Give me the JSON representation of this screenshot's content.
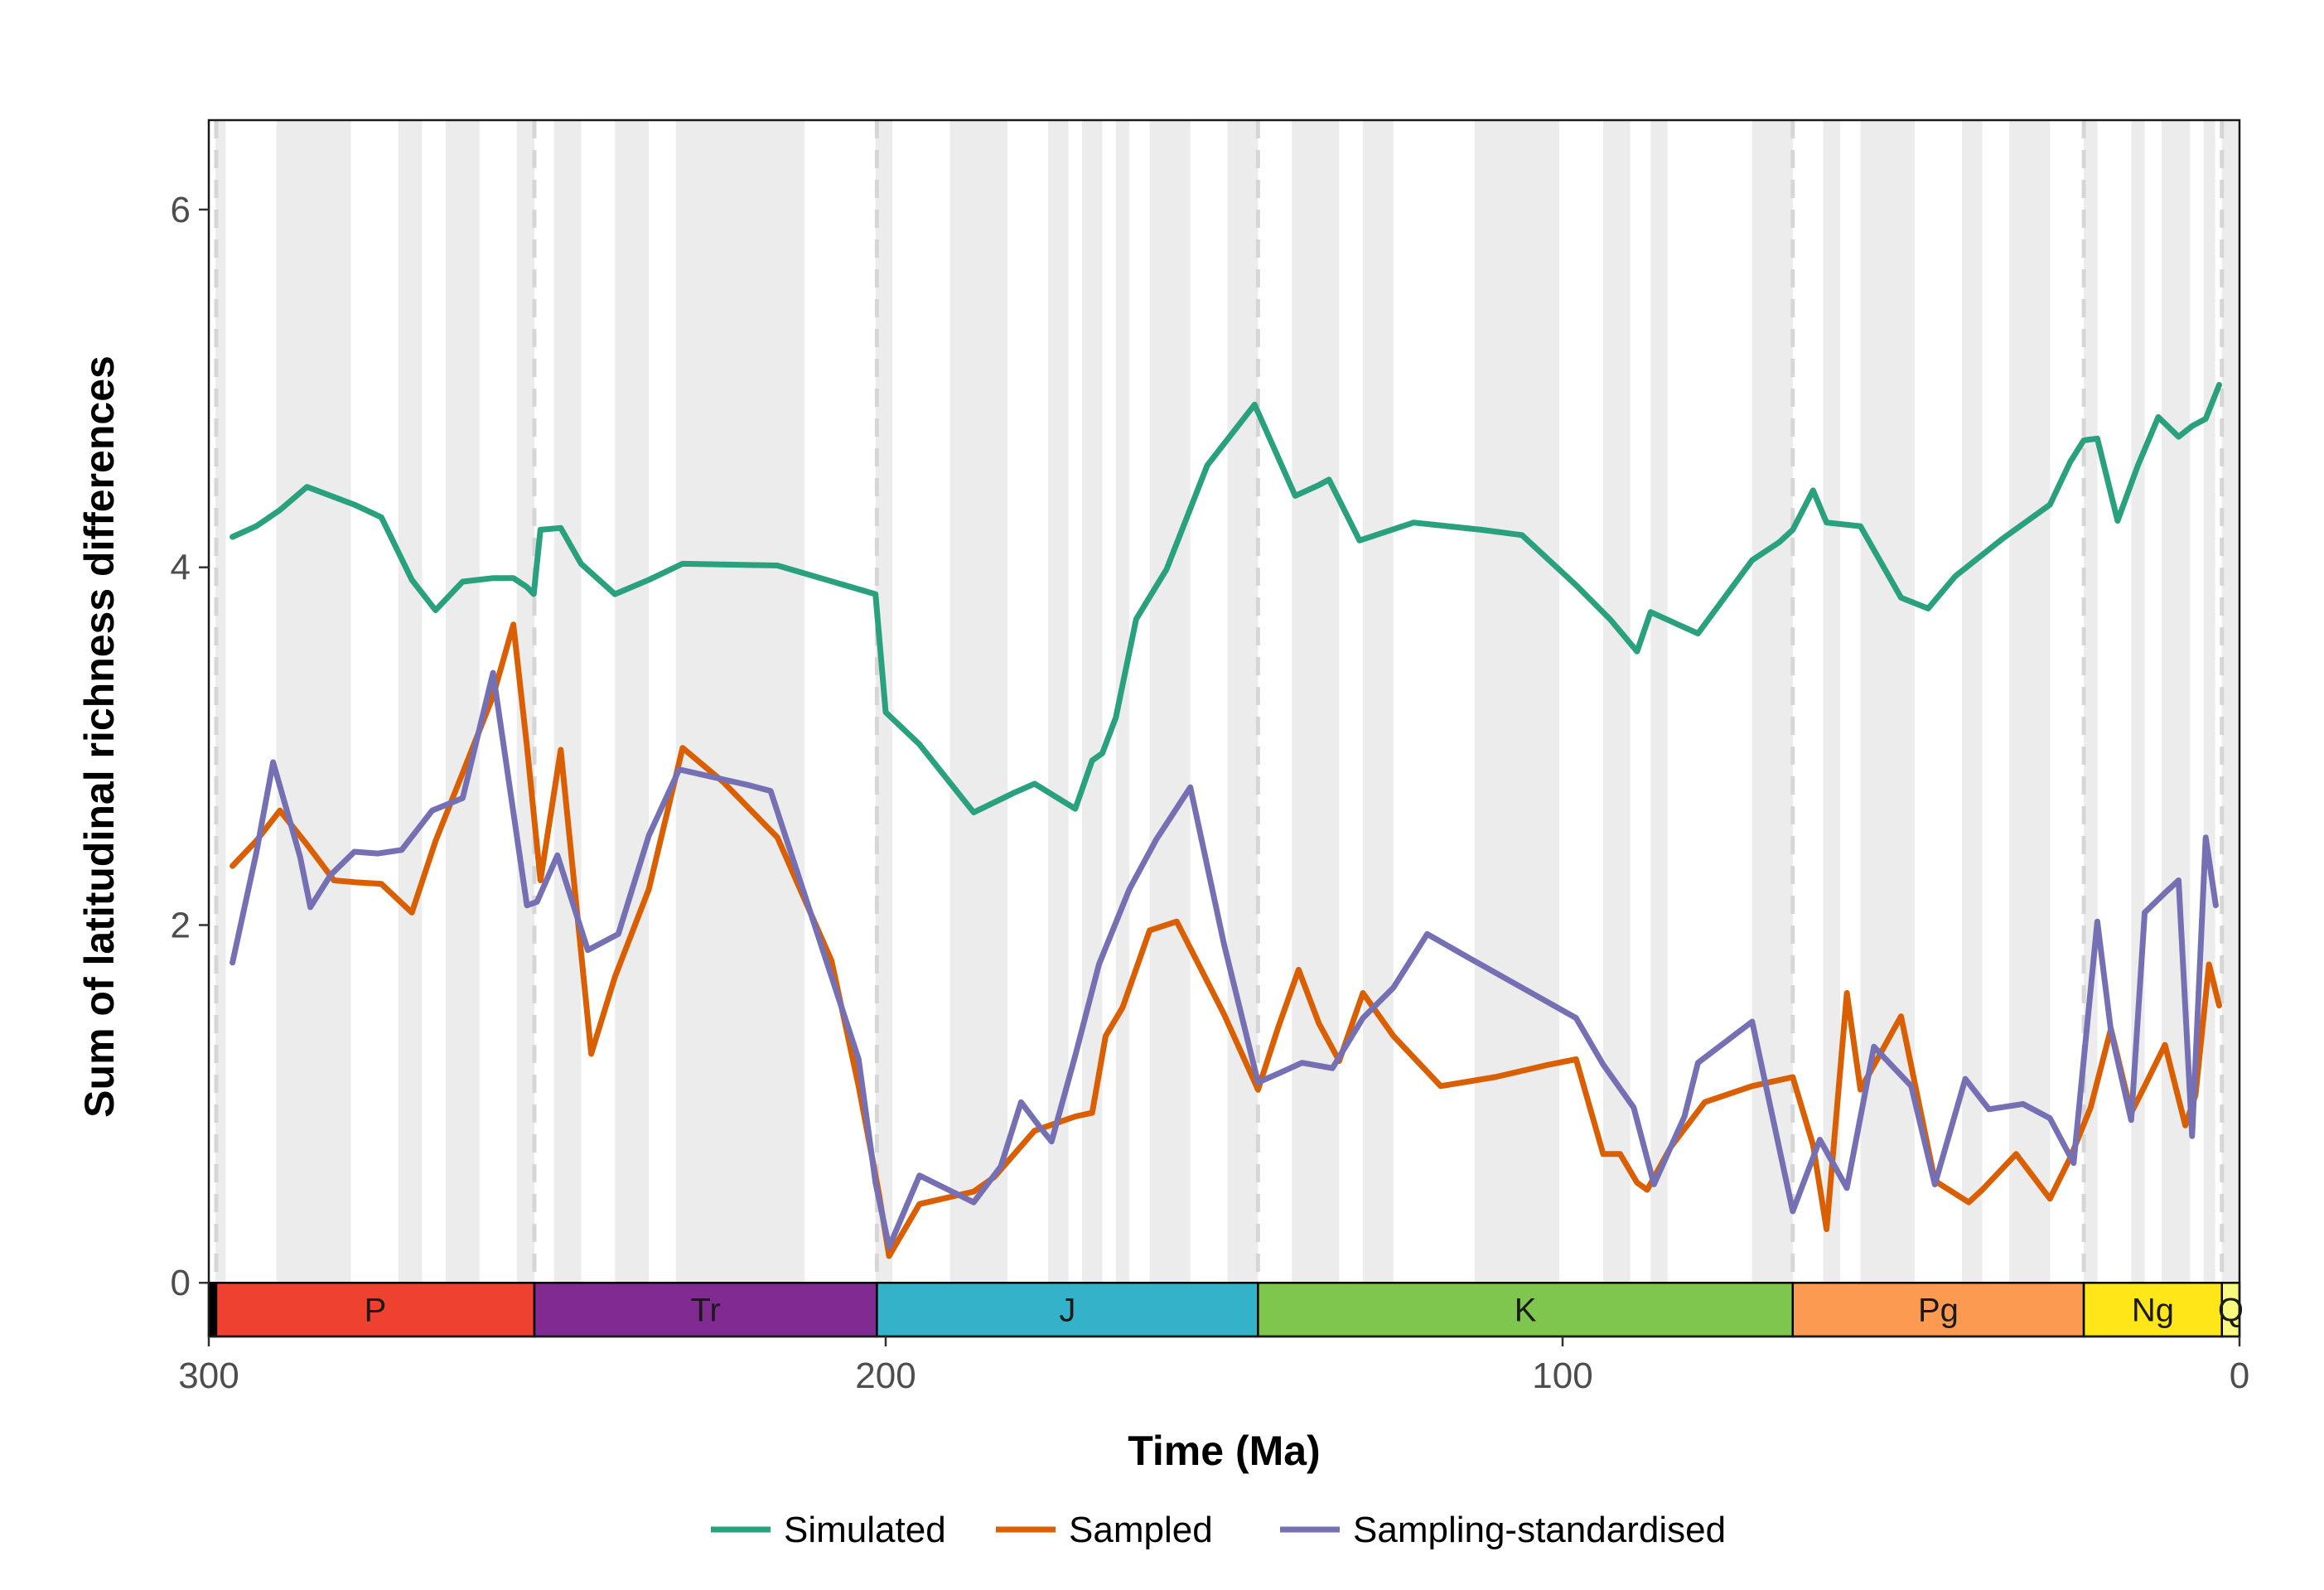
{
  "chart_data": {
    "type": "line",
    "xlabel": "Time (Ma)",
    "ylabel": "Sum of latitudinal richness differences",
    "xlim": [
      300,
      0
    ],
    "ylim": [
      -0.3,
      6.5
    ],
    "x_ticks": [
      300,
      200,
      100,
      0
    ],
    "y_ticks": [
      0,
      2,
      4,
      6
    ],
    "x_tick_labels": [
      "300",
      "200",
      "100",
      "0"
    ],
    "y_tick_labels": [
      "0",
      "2",
      "4",
      "6"
    ],
    "grid": false,
    "legend_position": "bottom",
    "background_bands_ma": [
      [
        299,
        297.5
      ],
      [
        290,
        279
      ],
      [
        272,
        268.5
      ],
      [
        265,
        260
      ],
      [
        254.5,
        251.9
      ],
      [
        249,
        245
      ],
      [
        240,
        235
      ],
      [
        231,
        212
      ],
      [
        201.5,
        199
      ],
      [
        190.5,
        182
      ],
      [
        176,
        173
      ],
      [
        171,
        168
      ],
      [
        166,
        164
      ],
      [
        161,
        155
      ],
      [
        149.5,
        145
      ],
      [
        140,
        133
      ],
      [
        129.5,
        125
      ],
      [
        113,
        100.5
      ],
      [
        94,
        90
      ],
      [
        87,
        84.5
      ],
      [
        72,
        66
      ],
      [
        61.5,
        59
      ],
      [
        56,
        48
      ],
      [
        41,
        38
      ],
      [
        34,
        28
      ],
      [
        23,
        21
      ],
      [
        16,
        14
      ],
      [
        11.5,
        7.3
      ],
      [
        5.3,
        3.6
      ],
      [
        2.6,
        0
      ]
    ],
    "period_boundaries_ma": [
      298.9,
      251.9,
      201.3,
      145,
      66,
      23,
      2.6
    ],
    "periods": [
      {
        "name": "",
        "start": 300,
        "end": 298.9,
        "color": "#000000"
      },
      {
        "name": "P",
        "start": 298.9,
        "end": 251.9,
        "color": "#EF4130"
      },
      {
        "name": "Tr",
        "start": 251.9,
        "end": 201.3,
        "color": "#812B92"
      },
      {
        "name": "J",
        "start": 201.3,
        "end": 145,
        "color": "#34B2C9"
      },
      {
        "name": "K",
        "start": 145,
        "end": 66,
        "color": "#7FC64E"
      },
      {
        "name": "Pg",
        "start": 66,
        "end": 23,
        "color": "#FD9A52"
      },
      {
        "name": "Ng",
        "start": 23,
        "end": 2.6,
        "color": "#FFE619"
      },
      {
        "name": "Q",
        "start": 2.6,
        "end": 0,
        "color": "#F9F97F"
      }
    ],
    "series": [
      {
        "name": "Simulated",
        "color": "#2AA17E",
        "points": [
          [
            296.5,
            4.17
          ],
          [
            293,
            4.23
          ],
          [
            289.5,
            4.32
          ],
          [
            285.5,
            4.45
          ],
          [
            278.5,
            4.35
          ],
          [
            274.5,
            4.28
          ],
          [
            270,
            3.93
          ],
          [
            266.5,
            3.76
          ],
          [
            262.5,
            3.92
          ],
          [
            258,
            3.94
          ],
          [
            255,
            3.94
          ],
          [
            253,
            3.89
          ],
          [
            252,
            3.85
          ],
          [
            251,
            4.21
          ],
          [
            248,
            4.22
          ],
          [
            245,
            4.02
          ],
          [
            240,
            3.85
          ],
          [
            235,
            3.93
          ],
          [
            230,
            4.02
          ],
          [
            216,
            4.01
          ],
          [
            201.5,
            3.85
          ],
          [
            200,
            3.19
          ],
          [
            195,
            3.01
          ],
          [
            187,
            2.63
          ],
          [
            181,
            2.74
          ],
          [
            178,
            2.79
          ],
          [
            172,
            2.65
          ],
          [
            169.5,
            2.92
          ],
          [
            168,
            2.96
          ],
          [
            166,
            3.16
          ],
          [
            163,
            3.71
          ],
          [
            158.5,
            3.99
          ],
          [
            152.5,
            4.57
          ],
          [
            145.5,
            4.91
          ],
          [
            139.5,
            4.4
          ],
          [
            136,
            4.46
          ],
          [
            134.5,
            4.49
          ],
          [
            130,
            4.15
          ],
          [
            122,
            4.25
          ],
          [
            112,
            4.21
          ],
          [
            106,
            4.18
          ],
          [
            98,
            3.9
          ],
          [
            93,
            3.71
          ],
          [
            89,
            3.53
          ],
          [
            87,
            3.75
          ],
          [
            80,
            3.63
          ],
          [
            72,
            4.04
          ],
          [
            68,
            4.14
          ],
          [
            66,
            4.21
          ],
          [
            63,
            4.43
          ],
          [
            61,
            4.25
          ],
          [
            56,
            4.23
          ],
          [
            50,
            3.83
          ],
          [
            46,
            3.77
          ],
          [
            42,
            3.95
          ],
          [
            35,
            4.16
          ],
          [
            28,
            4.35
          ],
          [
            25,
            4.59
          ],
          [
            23,
            4.71
          ],
          [
            21,
            4.72
          ],
          [
            18,
            4.26
          ],
          [
            15,
            4.57
          ],
          [
            12,
            4.84
          ],
          [
            9,
            4.73
          ],
          [
            7,
            4.79
          ],
          [
            5,
            4.83
          ],
          [
            3,
            5.02
          ]
        ]
      },
      {
        "name": "Sampled",
        "color": "#D95F02",
        "points": [
          [
            296.5,
            2.33
          ],
          [
            293,
            2.47
          ],
          [
            289.5,
            2.64
          ],
          [
            285.5,
            2.45
          ],
          [
            281.5,
            2.25
          ],
          [
            278.5,
            2.24
          ],
          [
            274.5,
            2.23
          ],
          [
            270,
            2.07
          ],
          [
            266.5,
            2.47
          ],
          [
            262.5,
            2.85
          ],
          [
            258,
            3.28
          ],
          [
            255,
            3.68
          ],
          [
            253,
            3.0
          ],
          [
            251,
            2.25
          ],
          [
            248,
            2.98
          ],
          [
            245,
            1.85
          ],
          [
            243.5,
            1.28
          ],
          [
            240,
            1.71
          ],
          [
            235,
            2.2
          ],
          [
            230,
            2.99
          ],
          [
            224,
            2.8
          ],
          [
            216,
            2.49
          ],
          [
            208,
            1.8
          ],
          [
            204,
            1.1
          ],
          [
            201,
            0.5
          ],
          [
            199.5,
            0.15
          ],
          [
            195,
            0.44
          ],
          [
            187,
            0.51
          ],
          [
            184,
            0.59
          ],
          [
            178,
            0.85
          ],
          [
            172,
            0.93
          ],
          [
            169.5,
            0.95
          ],
          [
            167.5,
            1.38
          ],
          [
            165,
            1.54
          ],
          [
            161,
            1.97
          ],
          [
            157,
            2.02
          ],
          [
            150,
            1.5
          ],
          [
            145,
            1.08
          ],
          [
            142,
            1.43
          ],
          [
            139,
            1.75
          ],
          [
            136,
            1.45
          ],
          [
            133,
            1.24
          ],
          [
            129.5,
            1.62
          ],
          [
            125,
            1.38
          ],
          [
            118,
            1.1
          ],
          [
            110,
            1.15
          ],
          [
            102,
            1.22
          ],
          [
            98,
            1.25
          ],
          [
            94,
            0.72
          ],
          [
            91.5,
            0.72
          ],
          [
            89,
            0.56
          ],
          [
            87.5,
            0.52
          ],
          [
            84,
            0.76
          ],
          [
            79,
            1.01
          ],
          [
            72,
            1.1
          ],
          [
            66,
            1.15
          ],
          [
            63,
            0.77
          ],
          [
            61,
            0.3
          ],
          [
            58,
            1.62
          ],
          [
            56,
            1.08
          ],
          [
            50,
            1.49
          ],
          [
            45,
            0.57
          ],
          [
            40,
            0.45
          ],
          [
            38,
            0.52
          ],
          [
            33,
            0.72
          ],
          [
            28,
            0.47
          ],
          [
            25,
            0.7
          ],
          [
            22,
            0.98
          ],
          [
            19,
            1.42
          ],
          [
            16,
            0.95
          ],
          [
            14,
            1.1
          ],
          [
            11,
            1.33
          ],
          [
            8,
            0.88
          ],
          [
            6.5,
            1.05
          ],
          [
            4.5,
            1.78
          ],
          [
            3,
            1.55
          ]
        ]
      },
      {
        "name": "Sampling-standardised",
        "color": "#7570B3",
        "points": [
          [
            296.5,
            1.79
          ],
          [
            293,
            2.4
          ],
          [
            290.5,
            2.91
          ],
          [
            286.5,
            2.38
          ],
          [
            285,
            2.1
          ],
          [
            282,
            2.28
          ],
          [
            278.5,
            2.41
          ],
          [
            275,
            2.4
          ],
          [
            271.5,
            2.42
          ],
          [
            267,
            2.64
          ],
          [
            262.5,
            2.71
          ],
          [
            258,
            3.41
          ],
          [
            253,
            2.11
          ],
          [
            251.5,
            2.13
          ],
          [
            248.5,
            2.39
          ],
          [
            244,
            1.86
          ],
          [
            239.5,
            1.95
          ],
          [
            235,
            2.5
          ],
          [
            230.5,
            2.87
          ],
          [
            220,
            2.78
          ],
          [
            217,
            2.75
          ],
          [
            204,
            1.25
          ],
          [
            201.5,
            0.56
          ],
          [
            199.5,
            0.2
          ],
          [
            195,
            0.6
          ],
          [
            187,
            0.45
          ],
          [
            183,
            0.65
          ],
          [
            180,
            1.01
          ],
          [
            177,
            0.86
          ],
          [
            175.5,
            0.79
          ],
          [
            172,
            1.27
          ],
          [
            168.5,
            1.78
          ],
          [
            164,
            2.2
          ],
          [
            160,
            2.48
          ],
          [
            155,
            2.77
          ],
          [
            150,
            1.89
          ],
          [
            145,
            1.12
          ],
          [
            142,
            1.17
          ],
          [
            138.5,
            1.23
          ],
          [
            134,
            1.2
          ],
          [
            129.5,
            1.48
          ],
          [
            125,
            1.65
          ],
          [
            120,
            1.95
          ],
          [
            114,
            1.82
          ],
          [
            106,
            1.65
          ],
          [
            98,
            1.48
          ],
          [
            94,
            1.22
          ],
          [
            89.5,
            0.98
          ],
          [
            86.5,
            0.55
          ],
          [
            82,
            0.93
          ],
          [
            80,
            1.23
          ],
          [
            72,
            1.46
          ],
          [
            66,
            0.4
          ],
          [
            62,
            0.8
          ],
          [
            58,
            0.53
          ],
          [
            54,
            1.32
          ],
          [
            48.5,
            1.1
          ],
          [
            45,
            0.55
          ],
          [
            40.5,
            1.14
          ],
          [
            37,
            0.97
          ],
          [
            32,
            1.0
          ],
          [
            28,
            0.92
          ],
          [
            24.5,
            0.67
          ],
          [
            21,
            2.02
          ],
          [
            19,
            1.41
          ],
          [
            16,
            0.91
          ],
          [
            14,
            2.07
          ],
          [
            11,
            2.18
          ],
          [
            9,
            2.25
          ],
          [
            7,
            0.82
          ],
          [
            5,
            2.49
          ],
          [
            3.5,
            2.11
          ]
        ]
      }
    ]
  }
}
